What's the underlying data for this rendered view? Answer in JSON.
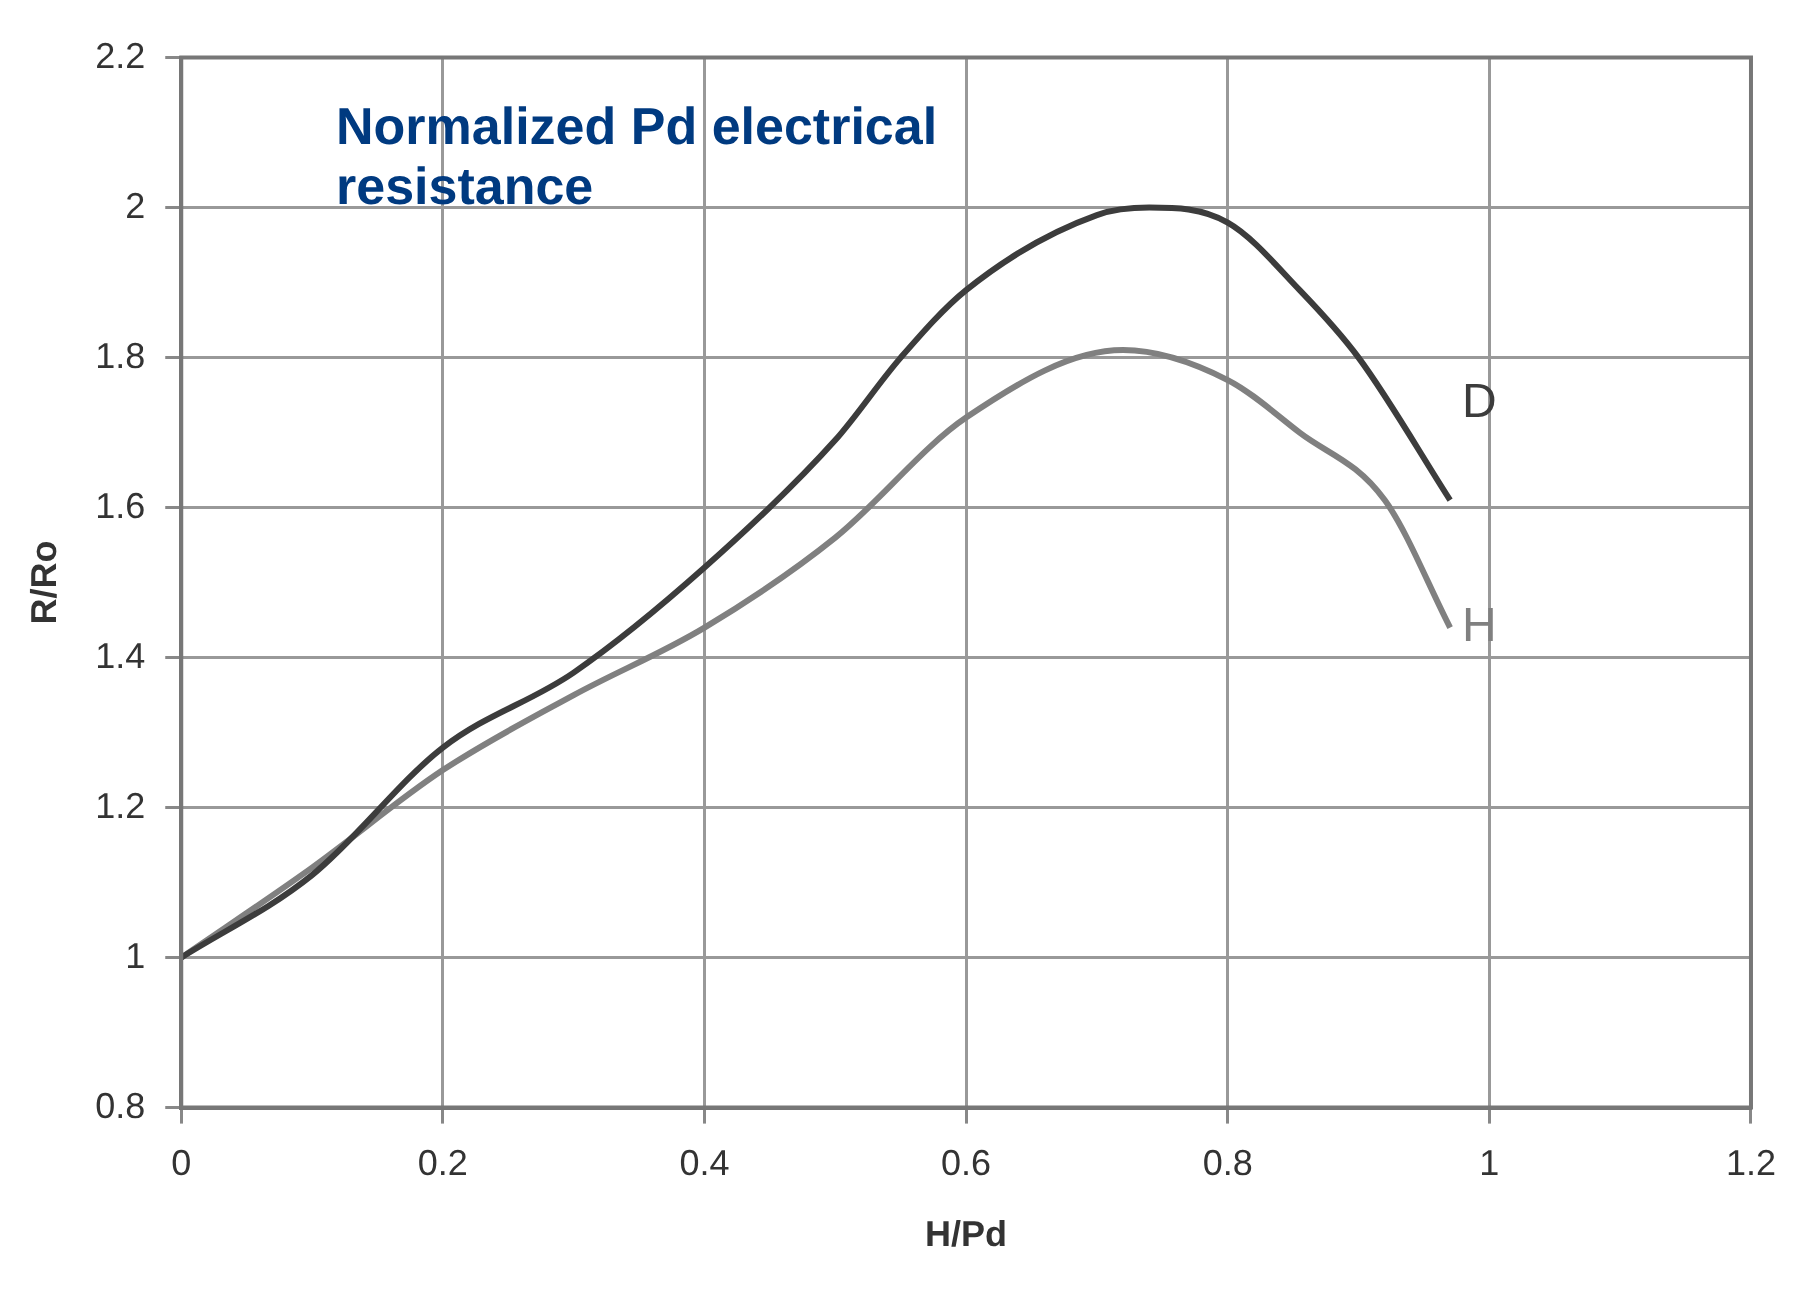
{
  "chart_data": {
    "type": "line",
    "title": "Normalized Pd electrical resistance",
    "xlabel": "H/Pd",
    "ylabel": "R/Ro",
    "xlim": [
      0,
      1.2
    ],
    "xticks": [
      0,
      0.2,
      0.4,
      0.6,
      0.8,
      1,
      1.2
    ],
    "ylim": [
      0.8,
      2.2
    ],
    "yticks": [
      0.8,
      1,
      1.2,
      1.4,
      1.6,
      1.8,
      2,
      2.2
    ],
    "grid": true,
    "marker": "none",
    "line_style": "solid",
    "series": [
      {
        "name": "D",
        "color": "#3c3c3c",
        "x": [
          0,
          0.1,
          0.2,
          0.3,
          0.4,
          0.5,
          0.55,
          0.6,
          0.7,
          0.74,
          0.8,
          0.855,
          0.9,
          0.97
        ],
        "values": [
          1,
          1.11,
          1.28,
          1.38,
          1.52,
          1.69,
          1.8,
          1.89,
          1.99,
          2,
          1.98,
          1.89,
          1.8,
          1.61
        ]
      },
      {
        "name": "H",
        "color": "#808080",
        "x": [
          0,
          0.1,
          0.2,
          0.3,
          0.4,
          0.5,
          0.6,
          0.72,
          0.8,
          0.855,
          0.92,
          0.97
        ],
        "values": [
          1,
          1.12,
          1.25,
          1.35,
          1.44,
          1.56,
          1.72,
          1.81,
          1.77,
          1.7,
          1.61,
          1.44
        ]
      }
    ]
  }
}
